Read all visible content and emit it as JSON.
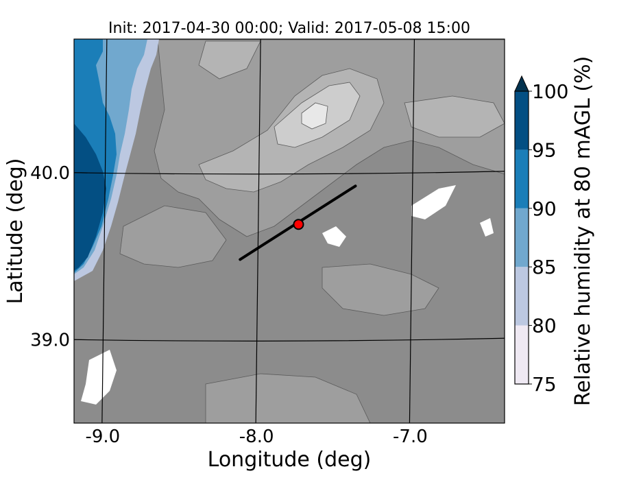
{
  "map": {
    "title": "Init: 2017-04-30 00:00; Valid: 2017-05-08 15:00",
    "xlabel": "Longitude (deg)",
    "ylabel": "Latitude (deg)",
    "lon_range": [
      -9.2,
      -6.4
    ],
    "lat_range": [
      38.5,
      40.8
    ],
    "lon_ticks": [
      {
        "value": -9.0,
        "label": "-9.0"
      },
      {
        "value": -8.0,
        "label": "-8.0"
      },
      {
        "value": -7.0,
        "label": "-7.0"
      }
    ],
    "lat_ticks": [
      {
        "value": 40.0,
        "label": "40.0"
      },
      {
        "value": 39.0,
        "label": "39.0"
      }
    ],
    "transect": {
      "start": [
        -8.12,
        39.48
      ],
      "end": [
        -7.37,
        39.92
      ],
      "color": "#000000"
    },
    "point": {
      "lon": -7.74,
      "lat": 39.69,
      "color": "#ff0000"
    },
    "terrain_colors": [
      "#8c8c8c",
      "#9e9e9e",
      "#b4b4b4",
      "#cdcdcd",
      "#e8e8e8"
    ]
  },
  "colorbar": {
    "label": "Relative humidity at 80 mAGL (%)",
    "extend": "max",
    "levels": [
      {
        "value": 75,
        "label": "75",
        "color": "#efe9f3"
      },
      {
        "value": 80,
        "label": "80",
        "color": "#bcc8e1"
      },
      {
        "value": 85,
        "label": "85",
        "color": "#71a8ce"
      },
      {
        "value": 90,
        "label": "90",
        "color": "#1b7eb8"
      },
      {
        "value": 95,
        "label": "95",
        "color": "#034f83"
      },
      {
        "value": 100,
        "label": "100",
        "color": "#034f83"
      }
    ],
    "overflow_color": "#02324f"
  }
}
